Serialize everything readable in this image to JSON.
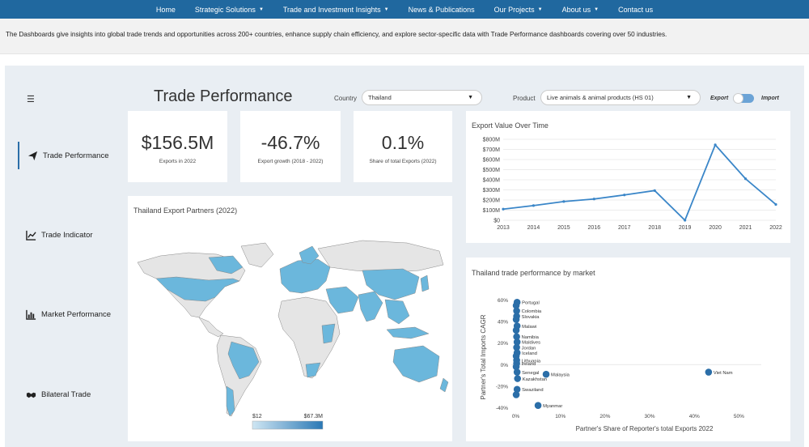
{
  "nav": {
    "items": [
      {
        "label": "Home",
        "caret": false
      },
      {
        "label": "Strategic Solutions",
        "caret": true
      },
      {
        "label": "Trade and Investment Insights",
        "caret": true
      },
      {
        "label": "News & Publications",
        "caret": false
      },
      {
        "label": "Our Projects",
        "caret": true
      },
      {
        "label": "About us",
        "caret": true
      },
      {
        "label": "Contact us",
        "caret": false
      }
    ]
  },
  "intro": "The Dashboards give insights into global trade trends and opportunities across 200+ countries, enhance supply chain efficiency, and explore sector-specific data with Trade Performance dashboards covering over 50 industries.",
  "header": {
    "title": "Trade Performance",
    "country_label": "Country",
    "country_value": "Thailand",
    "product_label": "Product",
    "product_value": "Live animals & animal products (HS 01)",
    "export_label": "Export",
    "import_label": "Import",
    "toggle_state": "Export"
  },
  "sidebar": {
    "items": [
      {
        "label": "Trade Performance",
        "icon": "paper-plane-icon",
        "active": true
      },
      {
        "label": "Trade Indicator",
        "icon": "line-chart-icon",
        "active": false
      },
      {
        "label": "Market Performance",
        "icon": "bar-chart-icon",
        "active": false
      },
      {
        "label": "Bilateral Trade",
        "icon": "handshake-icon",
        "active": false
      }
    ]
  },
  "kpis": [
    {
      "value": "$156.5M",
      "label": "Exports in 2022"
    },
    {
      "value": "-46.7%",
      "label": "Export growth (2018 - 2022)"
    },
    {
      "value": "0.1%",
      "label": "Share of total Exports (2022)"
    }
  ],
  "map": {
    "title": "Thailand Export Partners (2022)",
    "legend_min": "$12",
    "legend_max": "$67.3M",
    "colors": {
      "low": "#cfe6f3",
      "high": "#2a78b5",
      "partner": "#6bb7dc",
      "none": "#e5e5e5"
    }
  },
  "chart_data": [
    {
      "type": "line",
      "title": "Export Value Over Time",
      "x": [
        "2013",
        "2014",
        "2015",
        "2016",
        "2017",
        "2018",
        "2019",
        "2020",
        "2021",
        "2022"
      ],
      "series": [
        {
          "values": [
            110,
            145,
            185,
            210,
            250,
            293,
            0,
            745,
            410,
            156.5
          ]
        }
      ],
      "yticks": [
        "$0",
        "$100M",
        "$200M",
        "$300M",
        "$400M",
        "$500M",
        "$600M",
        "$700M",
        "$800M"
      ],
      "ylim": [
        0,
        800
      ],
      "color": "#3a86c8"
    },
    {
      "type": "scatter",
      "title": "Thailand trade performance by market",
      "xlabel": "Partner's Share of Reporter's total Exports 2022",
      "ylabel": "Partner's Total Imports CAGR",
      "xticks": [
        "0%",
        "10%",
        "20%",
        "30%",
        "40%",
        "50%"
      ],
      "yticks": [
        "-40%",
        "-20%",
        "0%",
        "20%",
        "40%",
        "60%"
      ],
      "xlim": [
        -1,
        55
      ],
      "ylim": [
        -42,
        62
      ],
      "points": [
        {
          "label": "Portugal",
          "x": 0.3,
          "y": 58
        },
        {
          "label": "",
          "x": 0.1,
          "y": 55
        },
        {
          "label": "Colombia",
          "x": 0.2,
          "y": 50
        },
        {
          "label": "Slovakia",
          "x": 0.2,
          "y": 45
        },
        {
          "label": "",
          "x": 0.1,
          "y": 42
        },
        {
          "label": "Malawi",
          "x": 0.3,
          "y": 36
        },
        {
          "label": "",
          "x": 0.1,
          "y": 32
        },
        {
          "label": "Namibia",
          "x": 0.2,
          "y": 26
        },
        {
          "label": "Maldives",
          "x": 0.3,
          "y": 21
        },
        {
          "label": "Jordan",
          "x": 0.2,
          "y": 16
        },
        {
          "label": "Iceland",
          "x": 0.3,
          "y": 11
        },
        {
          "label": "",
          "x": 0.1,
          "y": 8
        },
        {
          "label": "Lithuania",
          "x": 0.2,
          "y": 4
        },
        {
          "label": "Ireland",
          "x": 0.2,
          "y": 1
        },
        {
          "label": "",
          "x": 0.1,
          "y": -2
        },
        {
          "label": "Senegal",
          "x": 0.3,
          "y": -7
        },
        {
          "label": "Malaysia",
          "x": 6.8,
          "y": -9
        },
        {
          "label": "Viet Nam",
          "x": 43.2,
          "y": -7
        },
        {
          "label": "Kazakhstan",
          "x": 0.4,
          "y": -13
        },
        {
          "label": "Swaziland",
          "x": 0.3,
          "y": -23
        },
        {
          "label": "",
          "x": 0.1,
          "y": -28
        },
        {
          "label": "Myanmar",
          "x": 5.0,
          "y": -38
        }
      ],
      "color": "#2b6ea8"
    }
  ]
}
